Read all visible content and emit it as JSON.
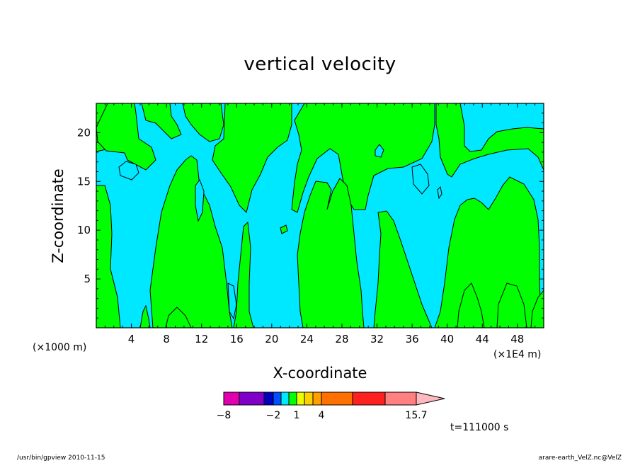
{
  "chart_data": {
    "type": "contour",
    "title": "vertical velocity",
    "xlabel": "X-coordinate",
    "ylabel": "Z-coordinate",
    "x_unit_left": "(×1000 m)",
    "x_unit_right": "(×1E4 m)",
    "xlim": [
      0,
      51
    ],
    "ylim": [
      0,
      23
    ],
    "x_ticks": [
      4,
      8,
      12,
      16,
      20,
      24,
      28,
      32,
      36,
      40,
      44,
      48
    ],
    "y_ticks": [
      5,
      10,
      15,
      20
    ],
    "colors": {
      "negative": "#00e8ff",
      "positive": "#00ff00",
      "contour_line": "#000000"
    },
    "colorbar": {
      "segments": [
        "#e000b0",
        "#8000c8",
        "#0000c0",
        "#0050ff",
        "#00e8ff",
        "#00ff00",
        "#e8ff00",
        "#ffd000",
        "#ffa000",
        "#ff7000",
        "#ff2020",
        "#ff8080"
      ],
      "extend_color": "#ffb8c0",
      "labels": [
        "-8",
        "-2",
        "1",
        "4",
        "15.7"
      ]
    },
    "time_label": "t=111000 s"
  },
  "footer": {
    "left": "/usr/bin/gpview  2010-11-15",
    "right": "arare-earth_VelZ.nc@VelZ"
  }
}
